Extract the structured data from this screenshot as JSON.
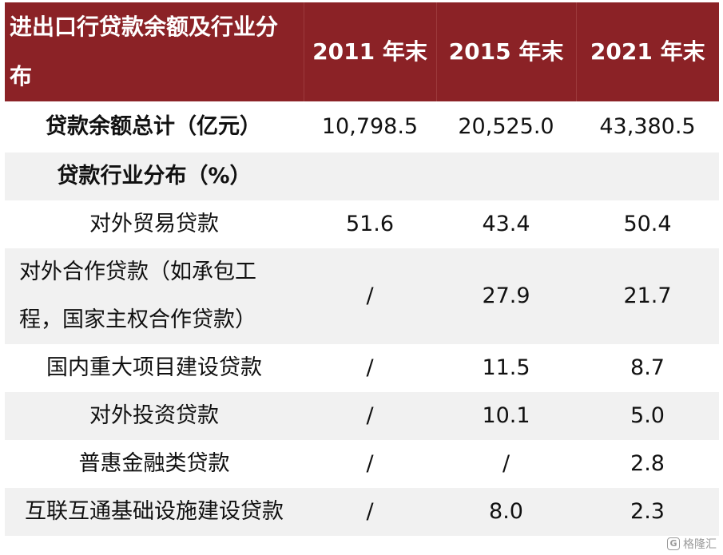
{
  "header": {
    "label": "进出口行贷款余额及行业分布",
    "years": [
      "2011 年末",
      "2015 年末",
      "2021 年末"
    ]
  },
  "total": {
    "label": "贷款余额总计（亿元）",
    "values": [
      "10,798.5",
      "20,525.0",
      "43,380.5"
    ]
  },
  "section": {
    "label": "贷款行业分布（%）"
  },
  "rows": [
    {
      "label": "对外贸易贷款",
      "values": [
        "51.6",
        "43.4",
        "50.4"
      ]
    },
    {
      "label": "对外合作贷款（如承包工程，国家主权合作贷款）",
      "values": [
        "/",
        "27.9",
        "21.7"
      ]
    },
    {
      "label": "国内重大项目建设贷款",
      "values": [
        "/",
        "11.5",
        "8.7"
      ]
    },
    {
      "label": "对外投资贷款",
      "values": [
        "/",
        "10.1",
        "5.0"
      ]
    },
    {
      "label": "普惠金融类贷款",
      "values": [
        "/",
        "/",
        "2.8"
      ]
    },
    {
      "label": "互联互通基础设施建设贷款",
      "values": [
        "/",
        "8.0",
        "2.3"
      ]
    }
  ],
  "watermark": {
    "logo": "G",
    "text": "格隆汇"
  },
  "colors": {
    "header_bg": "#8b2226",
    "header_text": "#ffffff",
    "row_shade": "#f1f1f1"
  }
}
